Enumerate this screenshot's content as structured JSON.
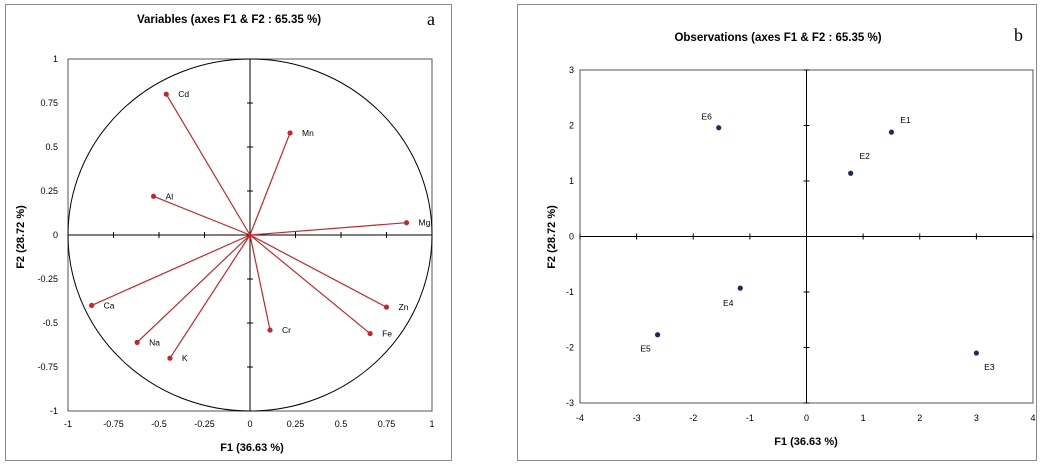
{
  "chart_data": [
    {
      "type": "scatter",
      "subtype": "correlation-circle",
      "title": "Variables (axes F1 & F2 : 65.35 %)",
      "panel_label": "a",
      "xlabel": "F1 (36.63 %)",
      "ylabel": "F2 (28.72 %)",
      "xlim": [
        -1,
        1
      ],
      "ylim": [
        -1,
        1
      ],
      "xticks": [
        "-1",
        "-0.75",
        "-0.5",
        "-0.25",
        "0",
        "0.25",
        "0.5",
        "0.75",
        "1"
      ],
      "yticks": [
        "-1",
        "-0.75",
        "-0.5",
        "-0.25",
        "0",
        "0.25",
        "0.5",
        "0.75",
        "1"
      ],
      "vector_color": "#c0282d",
      "points": [
        {
          "name": "Cd",
          "x": -0.46,
          "y": 0.8
        },
        {
          "name": "Mn",
          "x": 0.22,
          "y": 0.58
        },
        {
          "name": "Al",
          "x": -0.53,
          "y": 0.22
        },
        {
          "name": "Mg",
          "x": 0.86,
          "y": 0.07
        },
        {
          "name": "Ca",
          "x": -0.87,
          "y": -0.4
        },
        {
          "name": "Na",
          "x": -0.62,
          "y": -0.61
        },
        {
          "name": "K",
          "x": -0.44,
          "y": -0.7
        },
        {
          "name": "Cr",
          "x": 0.11,
          "y": -0.54
        },
        {
          "name": "Fe",
          "x": 0.66,
          "y": -0.56
        },
        {
          "name": "Zn",
          "x": 0.75,
          "y": -0.41
        }
      ]
    },
    {
      "type": "scatter",
      "title": "Observations (axes F1 & F2 : 65.35 %)",
      "panel_label": "b",
      "xlabel": "F1 (36.63 %)",
      "ylabel": "F2 (28.72 %)",
      "xlim": [
        -4,
        4
      ],
      "ylim": [
        -3,
        3
      ],
      "xticks": [
        "-4",
        "-3",
        "-2",
        "-1",
        "0",
        "1",
        "2",
        "3",
        "4"
      ],
      "yticks": [
        "-3",
        "-2",
        "-1",
        "0",
        "1",
        "2",
        "3"
      ],
      "point_color": "#1f2a5c",
      "points": [
        {
          "name": "E1",
          "x": 1.5,
          "y": 1.88
        },
        {
          "name": "E2",
          "x": 0.78,
          "y": 1.14
        },
        {
          "name": "E3",
          "x": 3.0,
          "y": -2.1
        },
        {
          "name": "E4",
          "x": -1.17,
          "y": -0.93
        },
        {
          "name": "E5",
          "x": -2.63,
          "y": -1.77
        },
        {
          "name": "E6",
          "x": -1.55,
          "y": 1.96
        }
      ]
    }
  ]
}
